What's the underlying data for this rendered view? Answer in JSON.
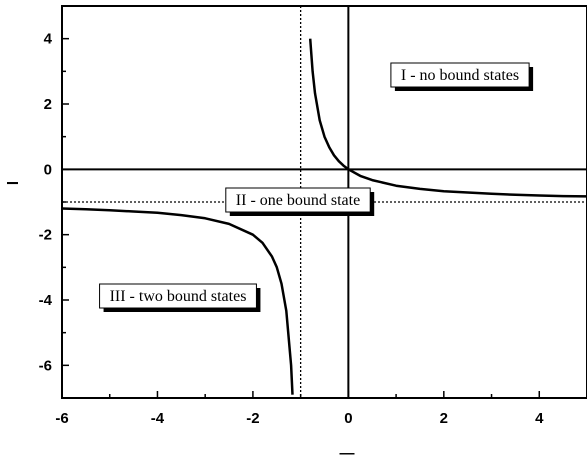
{
  "chart_data": {
    "type": "line",
    "xlabel": "—",
    "ylabel": "l",
    "xlim": [
      -6,
      5
    ],
    "ylim": [
      -7,
      5
    ],
    "x_ticks": [
      -6,
      -4,
      -2,
      0,
      2,
      4
    ],
    "y_ticks": [
      -6,
      -4,
      -2,
      0,
      2,
      4
    ],
    "grid": false,
    "asymptotes": {
      "vertical_x": -1,
      "horizontal_y": -1
    },
    "series": [
      {
        "branch": "right",
        "x": [
          -0.8,
          -0.75,
          -0.7,
          -0.6,
          -0.5,
          -0.4,
          -0.3,
          -0.2,
          -0.1,
          0,
          0.25,
          0.5,
          1,
          1.5,
          2,
          2.5,
          3,
          3.5,
          4,
          4.5,
          5
        ],
        "y": [
          4.0,
          3.0,
          2.33,
          1.5,
          1.0,
          0.67,
          0.43,
          0.25,
          0.11,
          0,
          -0.2,
          -0.33,
          -0.5,
          -0.6,
          -0.67,
          -0.71,
          -0.75,
          -0.78,
          -0.8,
          -0.82,
          -0.83
        ]
      },
      {
        "branch": "left",
        "x": [
          -6,
          -5.5,
          -5,
          -4.5,
          -4,
          -3.5,
          -3,
          -2.5,
          -2,
          -1.8,
          -1.6,
          -1.5,
          -1.4,
          -1.3,
          -1.2,
          -1.17
        ],
        "y": [
          -1.2,
          -1.22,
          -1.25,
          -1.29,
          -1.33,
          -1.4,
          -1.5,
          -1.67,
          -2.0,
          -2.25,
          -2.67,
          -3.0,
          -3.5,
          -4.33,
          -6.0,
          -6.9
        ]
      }
    ],
    "annotations": [
      {
        "text": "I  - no bound states",
        "region": "upper-right"
      },
      {
        "text": "II - one bound state",
        "region": "center"
      },
      {
        "text": "III - two bound states",
        "region": "lower-left"
      }
    ]
  }
}
